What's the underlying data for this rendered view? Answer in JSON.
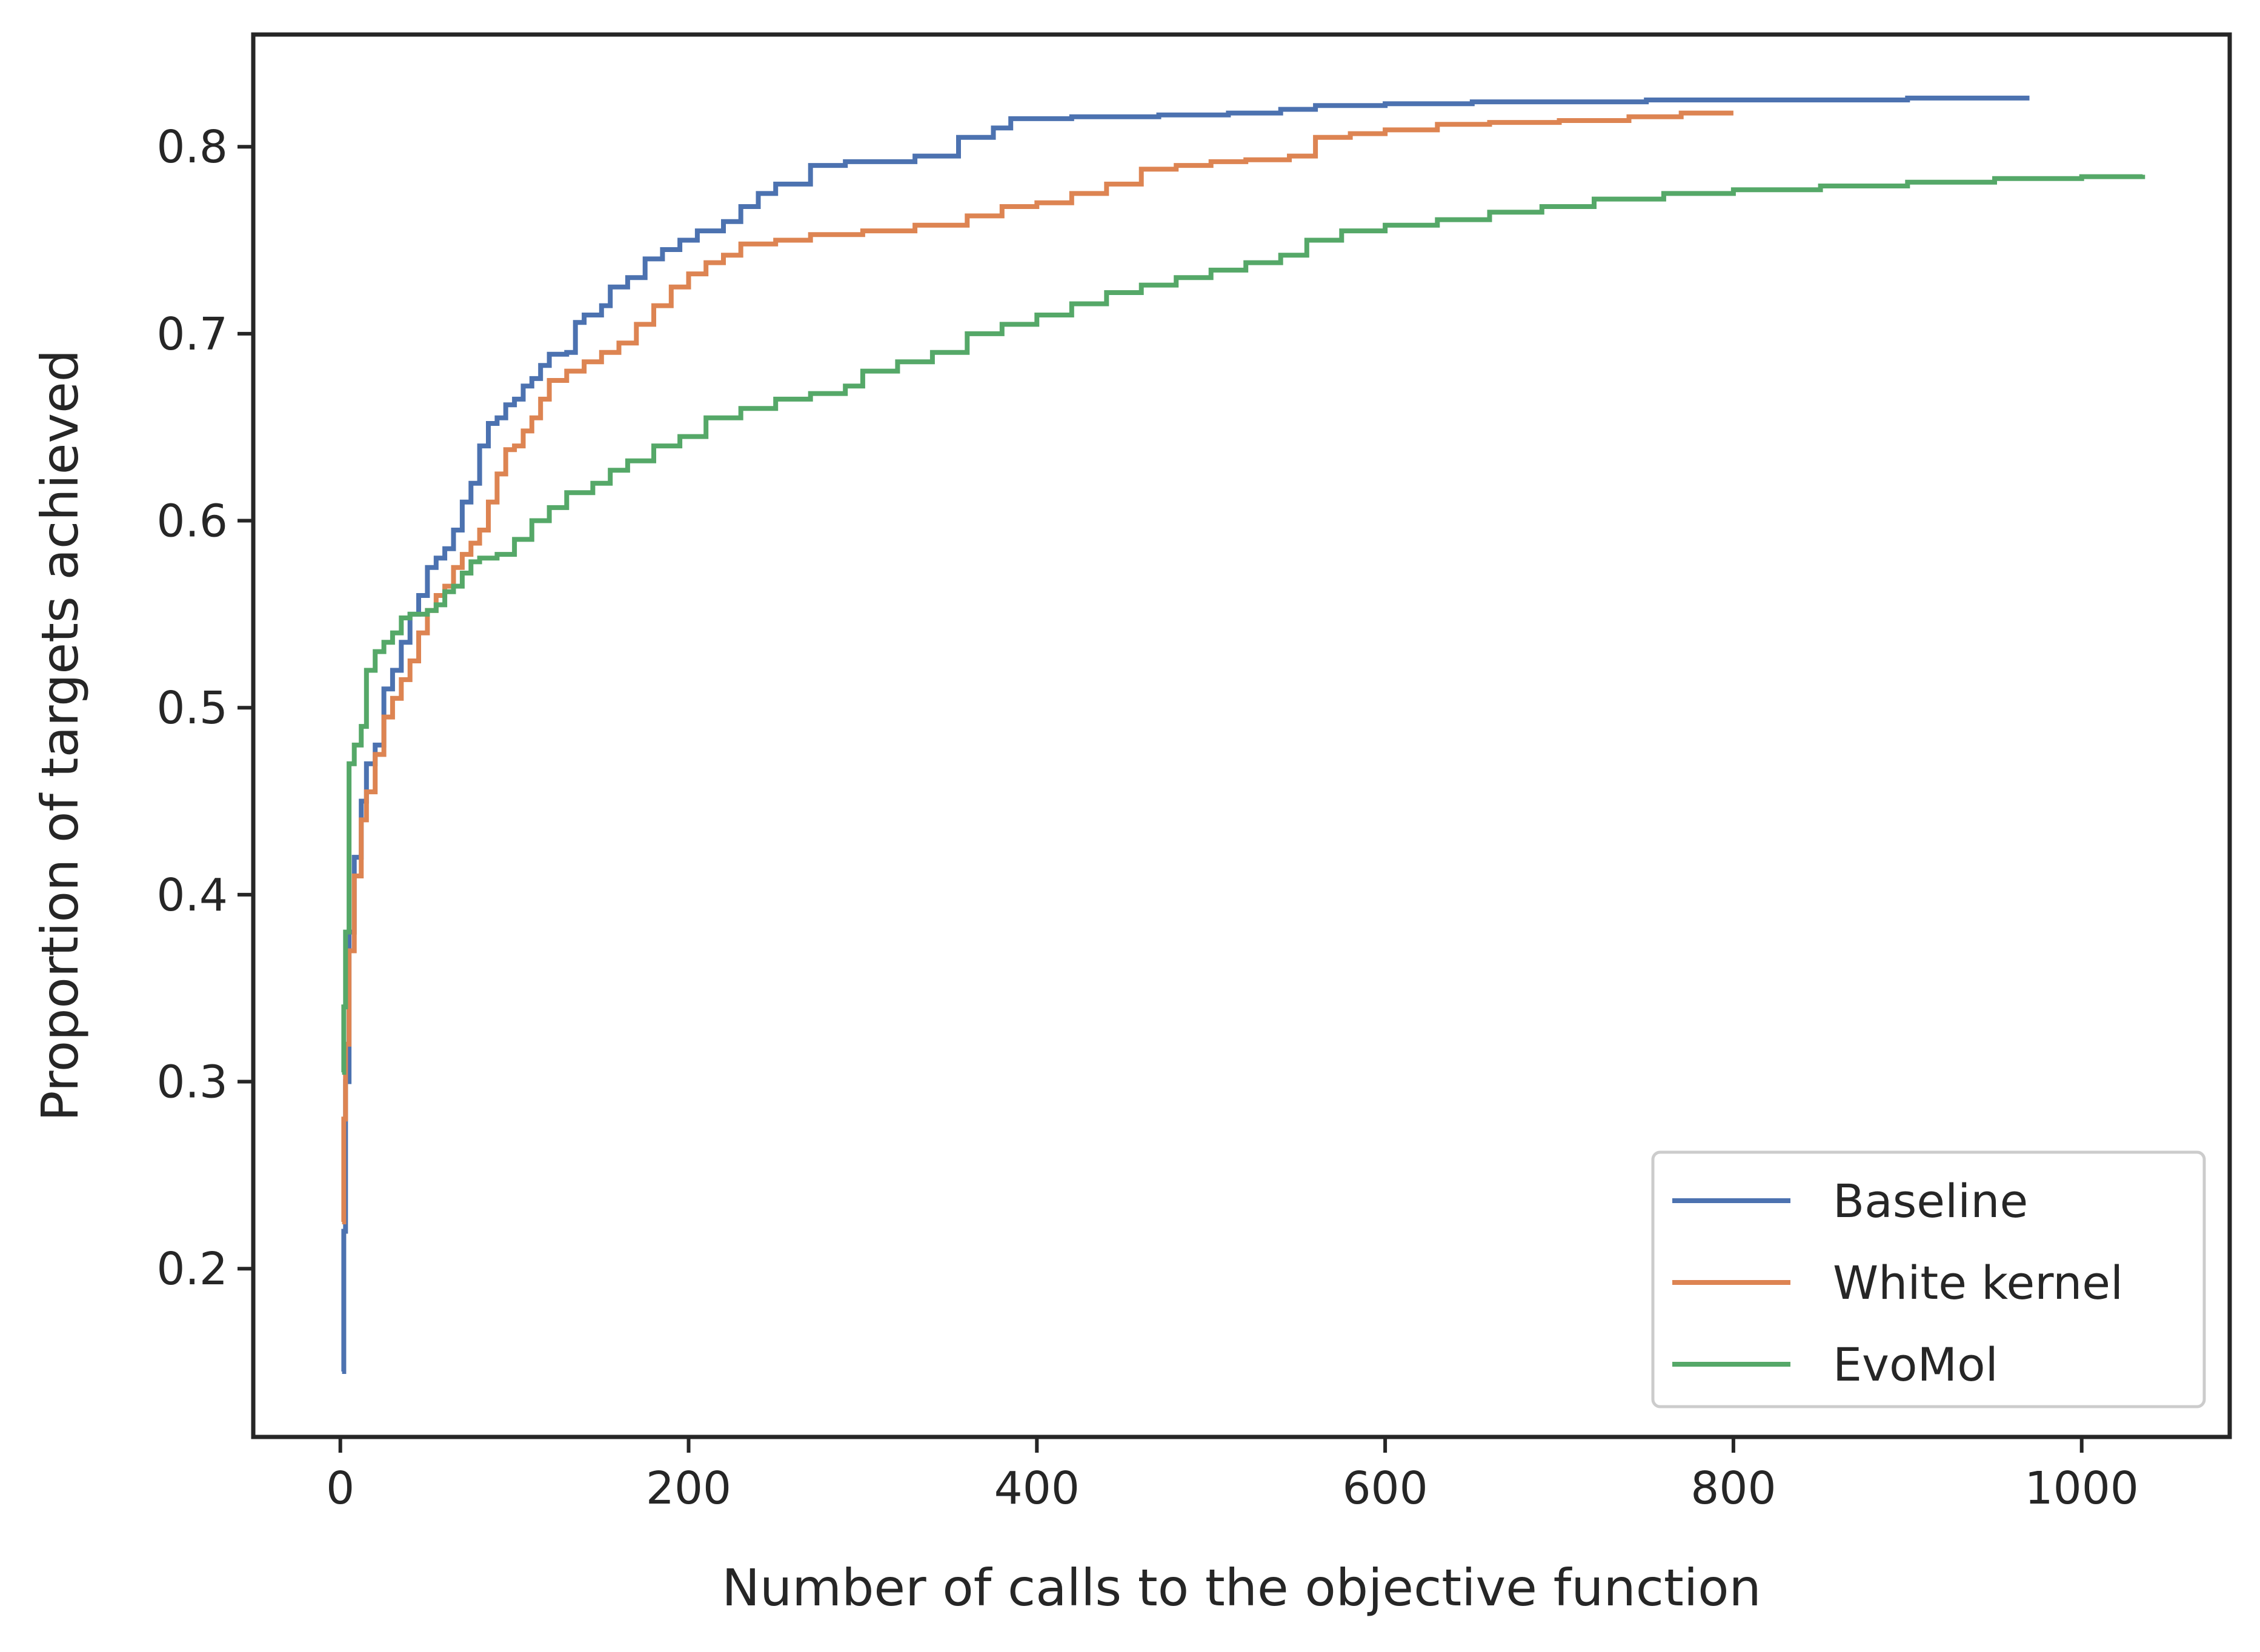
{
  "chart_data": {
    "type": "line",
    "title": "",
    "xlabel": "Number of calls to the objective function",
    "ylabel": "Proportion of targets achieved",
    "xlim": [
      -50,
      1085
    ],
    "ylim": [
      0.11,
      0.86
    ],
    "xticks": [
      0,
      200,
      400,
      600,
      800,
      1000
    ],
    "xtick_labels": [
      "0",
      "200",
      "400",
      "600",
      "800",
      "1000"
    ],
    "yticks": [
      0.2,
      0.3,
      0.4,
      0.5,
      0.6,
      0.7,
      0.8
    ],
    "ytick_labels": [
      "0.2",
      "0.3",
      "0.4",
      "0.5",
      "0.6",
      "0.7",
      "0.8"
    ],
    "grid": false,
    "legend_position": "lower-right",
    "series": [
      {
        "name": "Baseline",
        "color": "#4c72b0",
        "points": [
          [
            1,
            0.145
          ],
          [
            2,
            0.22
          ],
          [
            3,
            0.3
          ],
          [
            5,
            0.38
          ],
          [
            8,
            0.42
          ],
          [
            12,
            0.45
          ],
          [
            15,
            0.47
          ],
          [
            20,
            0.48
          ],
          [
            25,
            0.51
          ],
          [
            30,
            0.52
          ],
          [
            35,
            0.535
          ],
          [
            40,
            0.55
          ],
          [
            45,
            0.56
          ],
          [
            50,
            0.575
          ],
          [
            55,
            0.58
          ],
          [
            60,
            0.585
          ],
          [
            65,
            0.595
          ],
          [
            70,
            0.61
          ],
          [
            75,
            0.62
          ],
          [
            80,
            0.64
          ],
          [
            85,
            0.652
          ],
          [
            90,
            0.655
          ],
          [
            95,
            0.662
          ],
          [
            100,
            0.665
          ],
          [
            105,
            0.672
          ],
          [
            110,
            0.676
          ],
          [
            115,
            0.683
          ],
          [
            120,
            0.689
          ],
          [
            130,
            0.69
          ],
          [
            135,
            0.706
          ],
          [
            140,
            0.71
          ],
          [
            150,
            0.715
          ],
          [
            155,
            0.725
          ],
          [
            165,
            0.73
          ],
          [
            175,
            0.74
          ],
          [
            185,
            0.745
          ],
          [
            195,
            0.75
          ],
          [
            205,
            0.755
          ],
          [
            220,
            0.76
          ],
          [
            230,
            0.768
          ],
          [
            240,
            0.775
          ],
          [
            250,
            0.78
          ],
          [
            270,
            0.79
          ],
          [
            290,
            0.792
          ],
          [
            330,
            0.795
          ],
          [
            355,
            0.805
          ],
          [
            375,
            0.81
          ],
          [
            385,
            0.815
          ],
          [
            420,
            0.816
          ],
          [
            470,
            0.817
          ],
          [
            510,
            0.818
          ],
          [
            540,
            0.82
          ],
          [
            560,
            0.822
          ],
          [
            600,
            0.823
          ],
          [
            650,
            0.824
          ],
          [
            700,
            0.824
          ],
          [
            750,
            0.825
          ],
          [
            800,
            0.825
          ],
          [
            900,
            0.826
          ],
          [
            970,
            0.826
          ]
        ]
      },
      {
        "name": "White kernel",
        "color": "#dd8452",
        "points": [
          [
            1,
            0.225
          ],
          [
            2,
            0.28
          ],
          [
            3,
            0.32
          ],
          [
            5,
            0.37
          ],
          [
            8,
            0.41
          ],
          [
            12,
            0.44
          ],
          [
            15,
            0.455
          ],
          [
            20,
            0.475
          ],
          [
            25,
            0.495
          ],
          [
            30,
            0.505
          ],
          [
            35,
            0.515
          ],
          [
            40,
            0.525
          ],
          [
            45,
            0.54
          ],
          [
            50,
            0.552
          ],
          [
            55,
            0.56
          ],
          [
            60,
            0.565
          ],
          [
            65,
            0.575
          ],
          [
            70,
            0.582
          ],
          [
            75,
            0.588
          ],
          [
            80,
            0.595
          ],
          [
            85,
            0.61
          ],
          [
            90,
            0.625
          ],
          [
            95,
            0.638
          ],
          [
            100,
            0.64
          ],
          [
            105,
            0.648
          ],
          [
            110,
            0.655
          ],
          [
            115,
            0.665
          ],
          [
            120,
            0.675
          ],
          [
            130,
            0.68
          ],
          [
            140,
            0.685
          ],
          [
            150,
            0.69
          ],
          [
            160,
            0.695
          ],
          [
            170,
            0.705
          ],
          [
            180,
            0.715
          ],
          [
            190,
            0.725
          ],
          [
            200,
            0.732
          ],
          [
            210,
            0.738
          ],
          [
            220,
            0.742
          ],
          [
            230,
            0.748
          ],
          [
            250,
            0.75
          ],
          [
            270,
            0.753
          ],
          [
            300,
            0.755
          ],
          [
            330,
            0.758
          ],
          [
            360,
            0.763
          ],
          [
            380,
            0.768
          ],
          [
            400,
            0.77
          ],
          [
            420,
            0.775
          ],
          [
            440,
            0.78
          ],
          [
            460,
            0.788
          ],
          [
            480,
            0.79
          ],
          [
            500,
            0.792
          ],
          [
            520,
            0.793
          ],
          [
            545,
            0.795
          ],
          [
            560,
            0.805
          ],
          [
            580,
            0.807
          ],
          [
            600,
            0.809
          ],
          [
            630,
            0.812
          ],
          [
            660,
            0.813
          ],
          [
            700,
            0.814
          ],
          [
            740,
            0.816
          ],
          [
            770,
            0.818
          ],
          [
            800,
            0.818
          ]
        ]
      },
      {
        "name": "EvoMol",
        "color": "#55a868",
        "points": [
          [
            1,
            0.305
          ],
          [
            2,
            0.34
          ],
          [
            3,
            0.38
          ],
          [
            5,
            0.47
          ],
          [
            8,
            0.48
          ],
          [
            12,
            0.49
          ],
          [
            15,
            0.52
          ],
          [
            20,
            0.53
          ],
          [
            25,
            0.535
          ],
          [
            30,
            0.54
          ],
          [
            35,
            0.548
          ],
          [
            40,
            0.55
          ],
          [
            50,
            0.552
          ],
          [
            55,
            0.555
          ],
          [
            60,
            0.562
          ],
          [
            65,
            0.565
          ],
          [
            70,
            0.572
          ],
          [
            75,
            0.578
          ],
          [
            80,
            0.58
          ],
          [
            90,
            0.582
          ],
          [
            100,
            0.59
          ],
          [
            110,
            0.6
          ],
          [
            120,
            0.607
          ],
          [
            130,
            0.615
          ],
          [
            145,
            0.62
          ],
          [
            155,
            0.627
          ],
          [
            165,
            0.632
          ],
          [
            180,
            0.64
          ],
          [
            195,
            0.645
          ],
          [
            210,
            0.655
          ],
          [
            230,
            0.66
          ],
          [
            250,
            0.665
          ],
          [
            270,
            0.668
          ],
          [
            290,
            0.672
          ],
          [
            300,
            0.68
          ],
          [
            320,
            0.685
          ],
          [
            340,
            0.69
          ],
          [
            360,
            0.7
          ],
          [
            380,
            0.705
          ],
          [
            400,
            0.71
          ],
          [
            420,
            0.716
          ],
          [
            440,
            0.722
          ],
          [
            460,
            0.726
          ],
          [
            480,
            0.73
          ],
          [
            500,
            0.734
          ],
          [
            520,
            0.738
          ],
          [
            540,
            0.742
          ],
          [
            555,
            0.75
          ],
          [
            575,
            0.755
          ],
          [
            600,
            0.758
          ],
          [
            630,
            0.761
          ],
          [
            660,
            0.765
          ],
          [
            690,
            0.768
          ],
          [
            720,
            0.772
          ],
          [
            760,
            0.775
          ],
          [
            800,
            0.777
          ],
          [
            850,
            0.779
          ],
          [
            900,
            0.781
          ],
          [
            950,
            0.783
          ],
          [
            1000,
            0.784
          ],
          [
            1035,
            0.785
          ]
        ]
      }
    ]
  }
}
